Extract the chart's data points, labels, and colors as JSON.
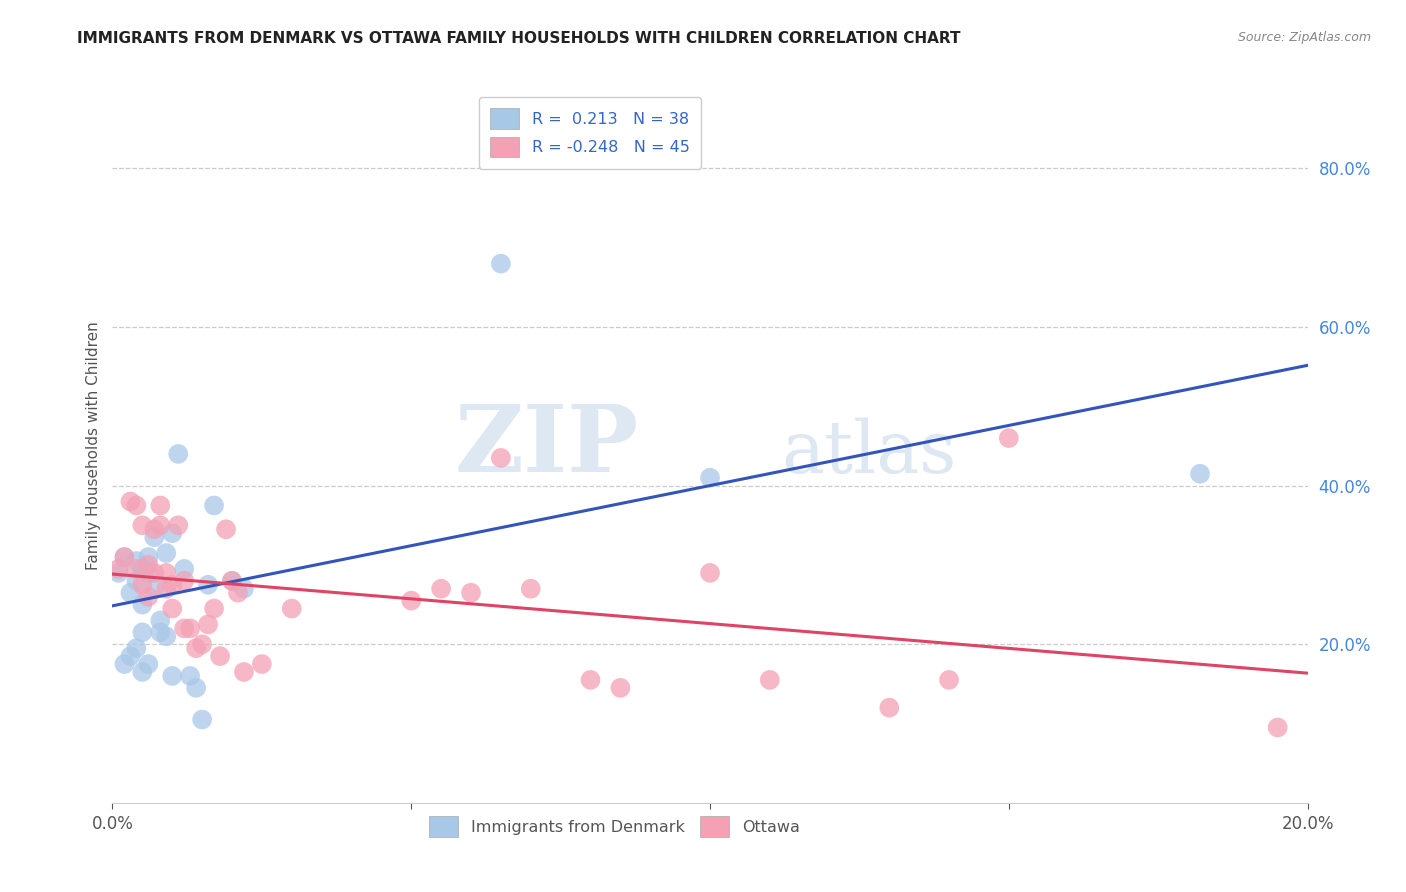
{
  "title": "IMMIGRANTS FROM DENMARK VS OTTAWA FAMILY HOUSEHOLDS WITH CHILDREN CORRELATION CHART",
  "source": "Source: ZipAtlas.com",
  "ylabel": "Family Households with Children",
  "ylabel_right_ticks": [
    "80.0%",
    "60.0%",
    "40.0%",
    "20.0%"
  ],
  "ylabel_right_vals": [
    0.8,
    0.6,
    0.4,
    0.2
  ],
  "xmin": 0.0,
  "xmax": 0.2,
  "ymin": 0.0,
  "ymax": 0.9,
  "color_blue": "#A8C8E8",
  "color_pink": "#F4A0B5",
  "line_blue": "#3355BB",
  "line_pink": "#DD4466",
  "blue_x": [
    0.001,
    0.002,
    0.002,
    0.003,
    0.003,
    0.004,
    0.004,
    0.004,
    0.005,
    0.005,
    0.005,
    0.005,
    0.006,
    0.006,
    0.006,
    0.007,
    0.007,
    0.008,
    0.008,
    0.009,
    0.009,
    0.01,
    0.01,
    0.011,
    0.012,
    0.013,
    0.014,
    0.015,
    0.016,
    0.017,
    0.02,
    0.022,
    0.065,
    0.1,
    0.182
  ],
  "blue_y": [
    0.29,
    0.31,
    0.175,
    0.185,
    0.265,
    0.305,
    0.28,
    0.195,
    0.295,
    0.25,
    0.215,
    0.165,
    0.31,
    0.29,
    0.175,
    0.335,
    0.27,
    0.23,
    0.215,
    0.315,
    0.21,
    0.34,
    0.16,
    0.44,
    0.295,
    0.16,
    0.145,
    0.105,
    0.275,
    0.375,
    0.28,
    0.27,
    0.68,
    0.41,
    0.415
  ],
  "pink_x": [
    0.001,
    0.002,
    0.003,
    0.004,
    0.004,
    0.005,
    0.005,
    0.006,
    0.006,
    0.007,
    0.007,
    0.008,
    0.008,
    0.009,
    0.009,
    0.01,
    0.01,
    0.011,
    0.012,
    0.012,
    0.013,
    0.014,
    0.015,
    0.016,
    0.017,
    0.018,
    0.019,
    0.02,
    0.021,
    0.022,
    0.025,
    0.03,
    0.05,
    0.055,
    0.06,
    0.065,
    0.07,
    0.08,
    0.085,
    0.1,
    0.11,
    0.13,
    0.14,
    0.15,
    0.195
  ],
  "pink_y": [
    0.295,
    0.31,
    0.38,
    0.375,
    0.295,
    0.35,
    0.275,
    0.3,
    0.26,
    0.345,
    0.29,
    0.375,
    0.35,
    0.29,
    0.27,
    0.275,
    0.245,
    0.35,
    0.28,
    0.22,
    0.22,
    0.195,
    0.2,
    0.225,
    0.245,
    0.185,
    0.345,
    0.28,
    0.265,
    0.165,
    0.175,
    0.245,
    0.255,
    0.27,
    0.265,
    0.435,
    0.27,
    0.155,
    0.145,
    0.29,
    0.155,
    0.12,
    0.155,
    0.46,
    0.095
  ],
  "watermark_zip": "ZIP",
  "watermark_atlas": "atlas"
}
